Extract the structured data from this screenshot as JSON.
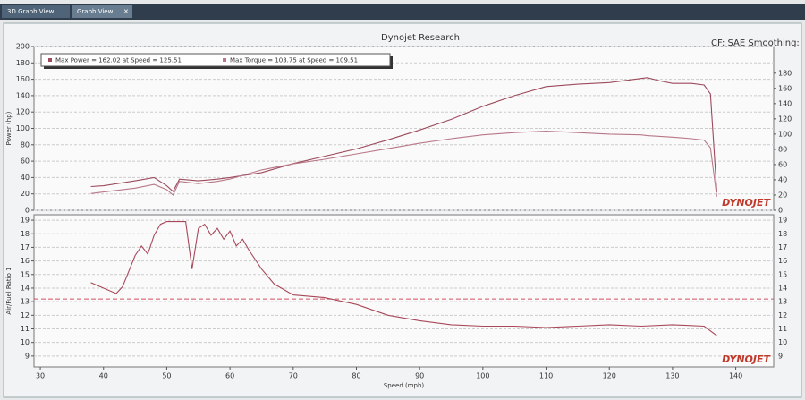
{
  "tabs": [
    "3D Graph View",
    "Graph View"
  ],
  "header": {
    "title": "Dynojet Research",
    "note": "CF: SAE Smoothing:"
  },
  "chart_data": [
    {
      "type": "line",
      "y_label": "Power (hp)",
      "logo": "DYNOJET",
      "x": [
        38,
        40,
        45,
        48,
        50,
        51,
        52,
        55,
        58,
        60,
        65,
        70,
        75,
        80,
        85,
        90,
        95,
        100,
        105,
        110,
        115,
        120,
        125,
        126,
        128,
        130,
        133,
        135,
        136,
        137
      ],
      "series": [
        {
          "name": "Max Power = 162.02 at Speed = 125.51",
          "color": "#9c4a5c",
          "values": [
            29,
            30,
            36,
            40,
            30,
            23,
            38,
            36,
            38,
            40,
            46,
            57,
            66,
            75,
            86,
            98,
            111,
            127,
            140,
            151,
            154,
            156,
            161,
            162,
            158,
            155,
            155,
            153,
            142,
            22
          ]
        },
        {
          "name": "Max Torque = 103.75 at Speed = 109.51",
          "color": "#b87888",
          "axis": "y2",
          "values": [
            22,
            24,
            29,
            34,
            27,
            20,
            38,
            35,
            38,
            41,
            53,
            61,
            67,
            74,
            81,
            88,
            94,
            99,
            102,
            104,
            102,
            100,
            99,
            98,
            97,
            96,
            94,
            92,
            82,
            18
          ]
        }
      ],
      "xlim": [
        29,
        146
      ],
      "ylim": [
        0,
        200
      ],
      "yticks": [
        0,
        20,
        40,
        60,
        80,
        100,
        120,
        140,
        160,
        180,
        200
      ],
      "y2lim": [
        0,
        215
      ],
      "y2ticks": [
        0,
        20,
        40,
        60,
        80,
        100,
        120,
        140,
        160,
        180
      ],
      "grid": true,
      "legend": "top-left"
    },
    {
      "type": "line",
      "y_label": "Air/Fuel Ratio 1",
      "x_label": "Speed (mph)",
      "logo": "DYNOJET",
      "x": [
        38,
        40,
        42,
        43,
        45,
        46,
        47,
        48,
        49,
        50,
        52,
        53,
        54,
        55,
        56,
        57,
        58,
        59,
        60,
        61,
        62,
        63,
        65,
        67,
        70,
        75,
        80,
        85,
        90,
        95,
        100,
        105,
        110,
        115,
        120,
        125,
        130,
        135,
        137
      ],
      "series": [
        {
          "color": "#a8485a",
          "values": [
            14.4,
            14.0,
            13.6,
            14.1,
            16.4,
            17.1,
            16.5,
            17.9,
            18.7,
            18.9,
            18.9,
            18.9,
            15.4,
            18.4,
            18.7,
            17.9,
            18.4,
            17.6,
            18.2,
            17.1,
            17.6,
            16.8,
            15.4,
            14.3,
            13.5,
            13.3,
            12.8,
            12.0,
            11.6,
            11.3,
            11.2,
            11.2,
            11.1,
            11.2,
            11.3,
            11.2,
            11.3,
            11.2,
            10.5
          ]
        }
      ],
      "xlim": [
        29,
        146
      ],
      "xticks": [
        30,
        40,
        50,
        60,
        70,
        80,
        90,
        100,
        110,
        120,
        130,
        140
      ],
      "ylim": [
        8.2,
        19.4
      ],
      "yticks": [
        9,
        10,
        11,
        12,
        13,
        14,
        15,
        16,
        17,
        18,
        19
      ],
      "reference_line": 13.2,
      "reference_color": "#d05060",
      "grid": true
    }
  ]
}
